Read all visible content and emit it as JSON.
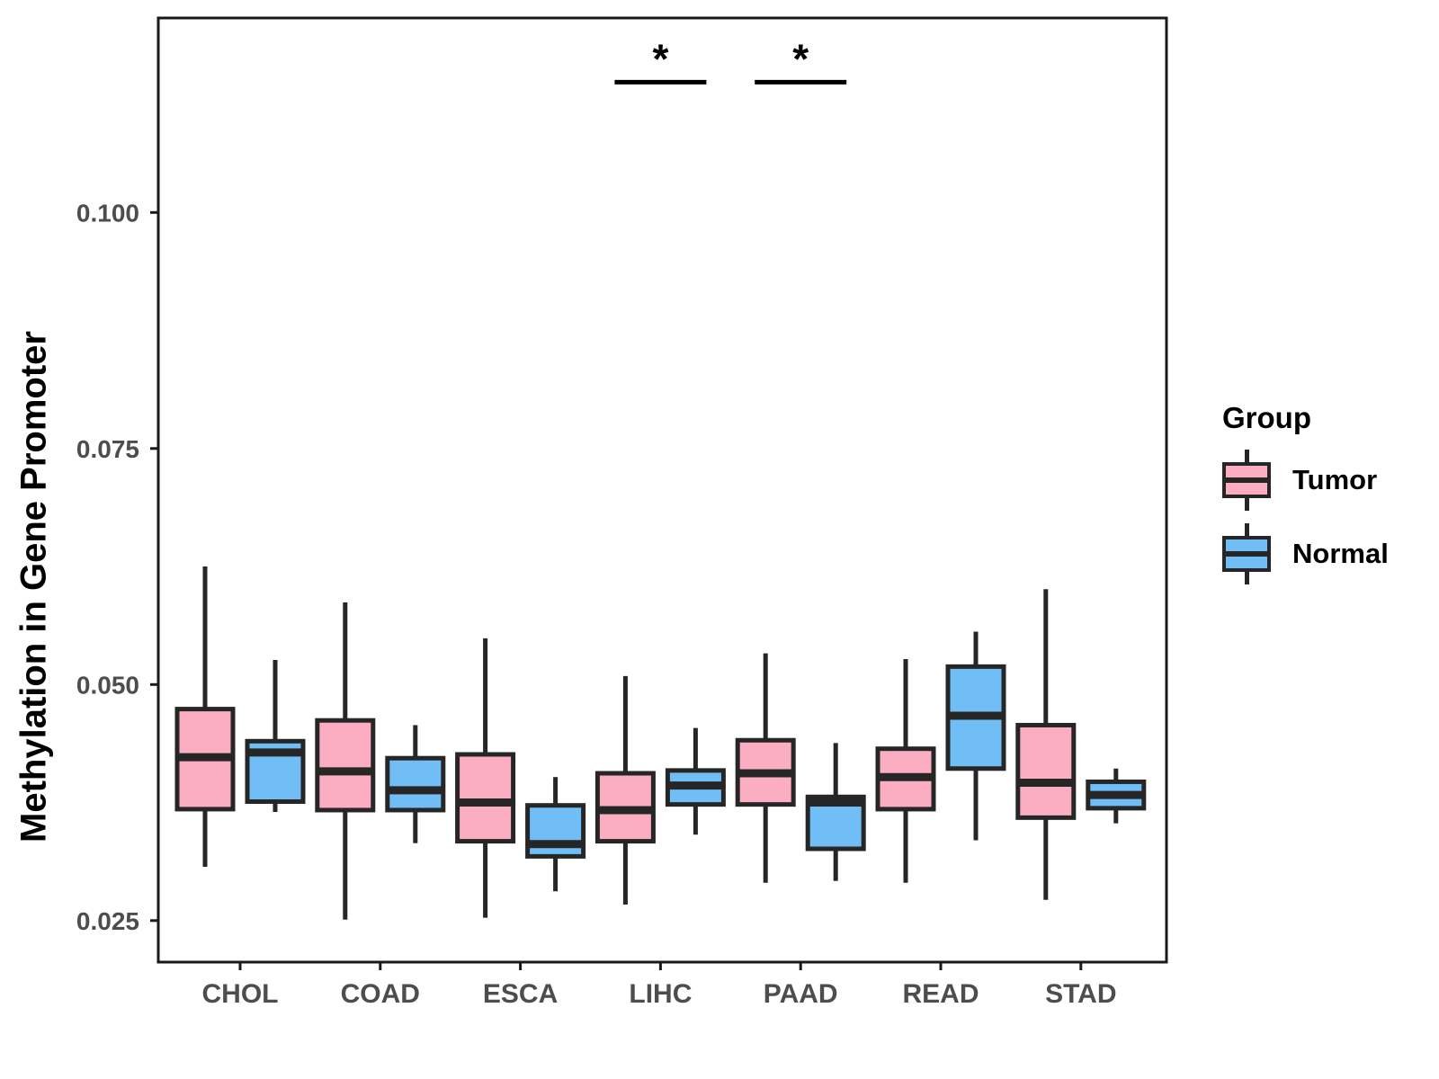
{
  "colors": {
    "tumor_fill": "#FBAEC2",
    "normal_fill": "#71BDF5",
    "box_border": "#262626",
    "panel_border": "#1A1A1A",
    "axis_text": "#4D4D4D",
    "significance": "#000000",
    "background": "#FFFFFF"
  },
  "legend": {
    "title": "Group",
    "items": [
      {
        "label": "Tumor",
        "color": "#FBAEC2"
      },
      {
        "label": "Normal",
        "color": "#71BDF5"
      }
    ]
  },
  "chart_data": {
    "type": "boxplot",
    "title": "",
    "xlabel": "",
    "ylabel": "Methylation in Gene Promoter",
    "categories": [
      "CHOL",
      "COAD",
      "ESCA",
      "LIHC",
      "PAAD",
      "READ",
      "STAD"
    ],
    "yticks": [
      0.025,
      0.05,
      0.075,
      0.1
    ],
    "ylim": [
      0.0206,
      0.1206
    ],
    "grid": false,
    "legend_position": "right",
    "series": [
      {
        "name": "Tumor",
        "color": "#FBAEC2",
        "boxes": [
          {
            "category": "CHOL",
            "whislo": 0.0307,
            "q1": 0.0368,
            "med": 0.0423,
            "q3": 0.0474,
            "whishi": 0.0625
          },
          {
            "category": "COAD",
            "whislo": 0.0251,
            "q1": 0.0367,
            "med": 0.0408,
            "q3": 0.0462,
            "whishi": 0.0587
          },
          {
            "category": "ESCA",
            "whislo": 0.0253,
            "q1": 0.0334,
            "med": 0.0375,
            "q3": 0.0426,
            "whishi": 0.0549
          },
          {
            "category": "LIHC",
            "whislo": 0.0267,
            "q1": 0.0334,
            "med": 0.0367,
            "q3": 0.0406,
            "whishi": 0.0509
          },
          {
            "category": "PAAD",
            "whislo": 0.029,
            "q1": 0.0373,
            "med": 0.0406,
            "q3": 0.0441,
            "whishi": 0.0533
          },
          {
            "category": "READ",
            "whislo": 0.029,
            "q1": 0.0368,
            "med": 0.0402,
            "q3": 0.0432,
            "whishi": 0.0527
          },
          {
            "category": "STAD",
            "whislo": 0.0272,
            "q1": 0.0359,
            "med": 0.0396,
            "q3": 0.0457,
            "whishi": 0.0601
          }
        ]
      },
      {
        "name": "Normal",
        "color": "#71BDF5",
        "boxes": [
          {
            "category": "CHOL",
            "whislo": 0.0365,
            "q1": 0.0376,
            "med": 0.0428,
            "q3": 0.044,
            "whishi": 0.0526
          },
          {
            "category": "COAD",
            "whislo": 0.0332,
            "q1": 0.0367,
            "med": 0.0388,
            "q3": 0.0422,
            "whishi": 0.0457
          },
          {
            "category": "ESCA",
            "whislo": 0.0281,
            "q1": 0.0318,
            "med": 0.0331,
            "q3": 0.0372,
            "whishi": 0.0402
          },
          {
            "category": "LIHC",
            "whislo": 0.0341,
            "q1": 0.0373,
            "med": 0.0393,
            "q3": 0.0409,
            "whishi": 0.0454
          },
          {
            "category": "PAAD",
            "whislo": 0.0292,
            "q1": 0.0326,
            "med": 0.0375,
            "q3": 0.0381,
            "whishi": 0.0438
          },
          {
            "category": "READ",
            "whislo": 0.0335,
            "q1": 0.0411,
            "med": 0.0467,
            "q3": 0.0519,
            "whishi": 0.0556
          },
          {
            "category": "STAD",
            "whislo": 0.0353,
            "q1": 0.0369,
            "med": 0.0383,
            "q3": 0.0397,
            "whishi": 0.0411
          }
        ]
      }
    ],
    "significance": [
      {
        "category": "LIHC",
        "label": "*",
        "y": 0.1138
      },
      {
        "category": "PAAD",
        "label": "*",
        "y": 0.1138
      }
    ]
  }
}
